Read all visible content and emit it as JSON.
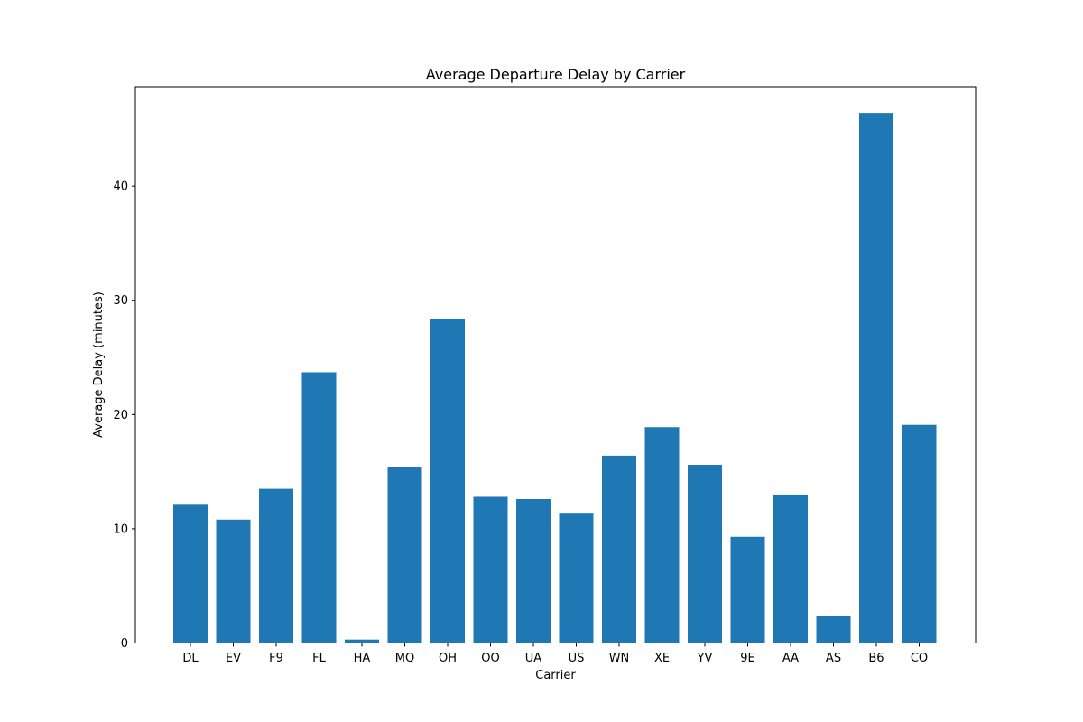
{
  "chart_data": {
    "type": "bar",
    "title": "Average Departure Delay by Carrier",
    "xlabel": "Carrier",
    "ylabel": "Average Delay (minutes)",
    "categories": [
      "DL",
      "EV",
      "F9",
      "FL",
      "HA",
      "MQ",
      "OH",
      "OO",
      "UA",
      "US",
      "WN",
      "XE",
      "YV",
      "9E",
      "AA",
      "AS",
      "B6",
      "CO"
    ],
    "values": [
      12.1,
      10.8,
      13.5,
      23.7,
      0.3,
      15.4,
      28.4,
      12.8,
      12.6,
      11.4,
      16.4,
      18.9,
      15.6,
      9.3,
      13.0,
      2.4,
      46.4,
      19.1
    ],
    "ylim": [
      0,
      48.7
    ],
    "yticks": [
      0,
      10,
      20,
      30,
      40
    ],
    "bar_color": "#1f77b4",
    "grid": false,
    "legend": false
  }
}
